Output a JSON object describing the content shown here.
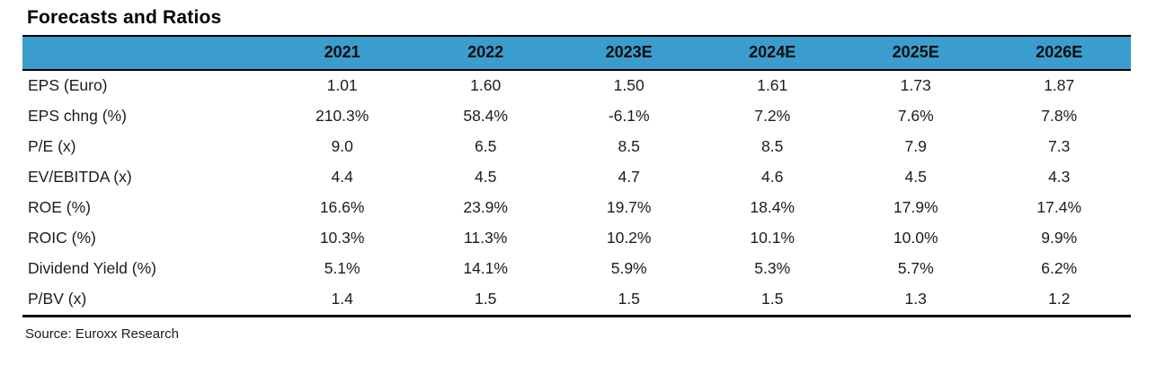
{
  "title": "Forecasts and Ratios",
  "source": "Source: Euroxx Research",
  "colors": {
    "header_bg": "#3A9DCE",
    "border": "#000000",
    "text": "#1c1c1c"
  },
  "table": {
    "label_column_header": "",
    "columns": [
      "2021",
      "2022",
      "2023E",
      "2024E",
      "2025E",
      "2026E"
    ],
    "rows": [
      {
        "label": "EPS (Euro)",
        "values": [
          "1.01",
          "1.60",
          "1.50",
          "1.61",
          "1.73",
          "1.87"
        ]
      },
      {
        "label": "EPS chng (%)",
        "values": [
          "210.3%",
          "58.4%",
          "-6.1%",
          "7.2%",
          "7.6%",
          "7.8%"
        ]
      },
      {
        "label": "P/E (x)",
        "values": [
          "9.0",
          "6.5",
          "8.5",
          "8.5",
          "7.9",
          "7.3"
        ]
      },
      {
        "label": "EV/EBITDA (x)",
        "values": [
          "4.4",
          "4.5",
          "4.7",
          "4.6",
          "4.5",
          "4.3"
        ]
      },
      {
        "label": "ROE (%)",
        "values": [
          "16.6%",
          "23.9%",
          "19.7%",
          "18.4%",
          "17.9%",
          "17.4%"
        ]
      },
      {
        "label": "ROIC (%)",
        "values": [
          "10.3%",
          "11.3%",
          "10.2%",
          "10.1%",
          "10.0%",
          "9.9%"
        ]
      },
      {
        "label": "Dividend Yield (%)",
        "values": [
          "5.1%",
          "14.1%",
          "5.9%",
          "5.3%",
          "5.7%",
          "6.2%"
        ]
      },
      {
        "label": "P/BV (x)",
        "values": [
          "1.4",
          "1.5",
          "1.5",
          "1.5",
          "1.3",
          "1.2"
        ]
      }
    ]
  }
}
